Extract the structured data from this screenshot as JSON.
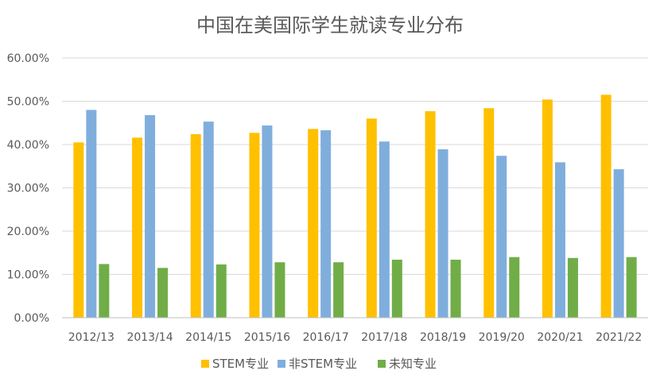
{
  "chart_data": {
    "type": "bar",
    "title": "中国在美国际学生就读专业分布",
    "xlabel": "",
    "ylabel": "",
    "categories": [
      "2012/13",
      "2013/14",
      "2014/15",
      "2015/16",
      "2016/17",
      "2017/18",
      "2018/19",
      "2019/20",
      "2020/21",
      "2021/22"
    ],
    "series": [
      {
        "name": "STEM专业",
        "color": "#FFC000",
        "values": [
          40.5,
          41.6,
          42.4,
          42.7,
          43.6,
          46.0,
          47.7,
          48.4,
          50.4,
          51.5
        ]
      },
      {
        "name": "非STEM专业",
        "color": "#7FAEDD",
        "values": [
          48.0,
          46.8,
          45.3,
          44.4,
          43.3,
          40.7,
          38.9,
          37.4,
          35.9,
          34.3
        ]
      },
      {
        "name": "未知专业",
        "color": "#70AD47",
        "values": [
          12.4,
          11.5,
          12.3,
          12.8,
          12.8,
          13.4,
          13.4,
          14.0,
          13.8,
          14.0
        ]
      }
    ],
    "ylim": [
      0,
      60
    ],
    "yticks": [
      0,
      10,
      20,
      30,
      40,
      50,
      60
    ],
    "ytick_labels": [
      "0.00%",
      "10.00%",
      "20.00%",
      "30.00%",
      "40.00%",
      "50.00%",
      "60.00%"
    ],
    "grid": true,
    "legend_position": "bottom"
  }
}
